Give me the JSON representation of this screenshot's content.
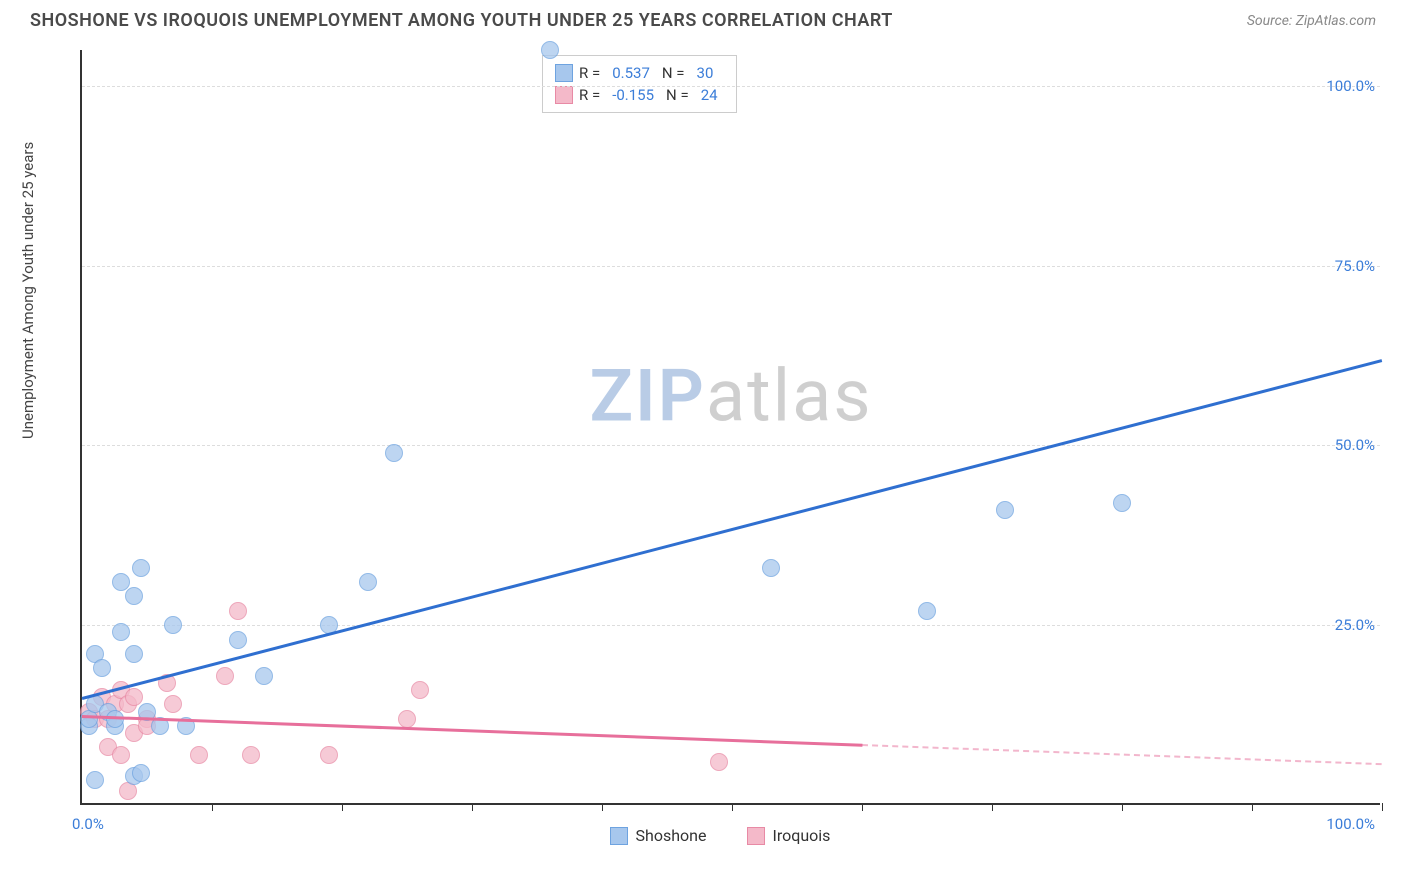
{
  "header": {
    "title": "SHOSHONE VS IROQUOIS UNEMPLOYMENT AMONG YOUTH UNDER 25 YEARS CORRELATION CHART",
    "source_prefix": "Source: ",
    "source_name": "ZipAtlas.com"
  },
  "chart": {
    "type": "scatter",
    "y_axis_title": "Unemployment Among Youth under 25 years",
    "xlim": [
      0,
      100
    ],
    "ylim": [
      0,
      105
    ],
    "y_ticks": [
      25,
      50,
      75,
      100
    ],
    "y_tick_labels": [
      "25.0%",
      "50.0%",
      "75.0%",
      "100.0%"
    ],
    "x_tick_positions": [
      10,
      20,
      30,
      40,
      50,
      60,
      70,
      80,
      90,
      100
    ],
    "x_start_label": "0.0%",
    "x_end_label": "100.0%",
    "background_color": "#ffffff",
    "grid_color": "#dddddd",
    "axis_color": "#333333",
    "tick_label_color": "#3b7dd8",
    "series": {
      "shoshone": {
        "label": "Shoshone",
        "fill": "#a7c7ed",
        "stroke": "#6ea3e0",
        "line_color": "#2f6fd0",
        "r_label": "R =",
        "r_value": "0.537",
        "n_label": "N =",
        "n_value": "30",
        "point_radius": 9,
        "point_opacity": 0.75,
        "trend": {
          "x1": 0,
          "y1": 15,
          "x2": 100,
          "y2": 62,
          "dash_from_x": 100
        },
        "points": [
          [
            0.5,
            11
          ],
          [
            0.5,
            12
          ],
          [
            1,
            14
          ],
          [
            1,
            21
          ],
          [
            1.5,
            19
          ],
          [
            2,
            13
          ],
          [
            1,
            3.5
          ],
          [
            2.5,
            11
          ],
          [
            2.5,
            12
          ],
          [
            3,
            24
          ],
          [
            3,
            31
          ],
          [
            4,
            21
          ],
          [
            4,
            29
          ],
          [
            4.5,
            33
          ],
          [
            4,
            4
          ],
          [
            4.5,
            4.5
          ],
          [
            5,
            13
          ],
          [
            6,
            11
          ],
          [
            7,
            25
          ],
          [
            8,
            11
          ],
          [
            12,
            23
          ],
          [
            14,
            18
          ],
          [
            19,
            25
          ],
          [
            22,
            31
          ],
          [
            24,
            49
          ],
          [
            36,
            105
          ],
          [
            53,
            33
          ],
          [
            65,
            27
          ],
          [
            71,
            41
          ],
          [
            80,
            42
          ]
        ]
      },
      "iroquois": {
        "label": "Iroquois",
        "fill": "#f4b9c9",
        "stroke": "#e88aa5",
        "line_color": "#e76f9b",
        "r_label": "R =",
        "r_value": "-0.155",
        "n_label": "N =",
        "n_value": "24",
        "point_radius": 9,
        "point_opacity": 0.75,
        "trend": {
          "x1": 0,
          "y1": 12.5,
          "x2": 60,
          "y2": 8.5,
          "dash_from_x": 60
        },
        "points": [
          [
            0.5,
            13
          ],
          [
            1,
            12
          ],
          [
            1.5,
            15
          ],
          [
            2,
            12
          ],
          [
            2,
            8
          ],
          [
            2.5,
            14
          ],
          [
            3,
            7
          ],
          [
            3,
            16
          ],
          [
            3.5,
            14
          ],
          [
            3.5,
            2
          ],
          [
            4,
            10
          ],
          [
            4,
            15
          ],
          [
            5,
            12
          ],
          [
            5,
            11
          ],
          [
            6.5,
            17
          ],
          [
            7,
            14
          ],
          [
            9,
            7
          ],
          [
            11,
            18
          ],
          [
            12,
            27
          ],
          [
            13,
            7
          ],
          [
            19,
            7
          ],
          [
            25,
            12
          ],
          [
            26,
            16
          ],
          [
            49,
            6
          ]
        ]
      }
    },
    "watermark": {
      "text_a": "ZIP",
      "text_b": "atlas",
      "color_a": "#b9cce6",
      "color_b": "#cfcfcf"
    }
  },
  "bottom_legend": {
    "items": [
      {
        "label": "Shoshone",
        "fill": "#a7c7ed",
        "stroke": "#6ea3e0"
      },
      {
        "label": "Iroquois",
        "fill": "#f4b9c9",
        "stroke": "#e88aa5"
      }
    ]
  }
}
